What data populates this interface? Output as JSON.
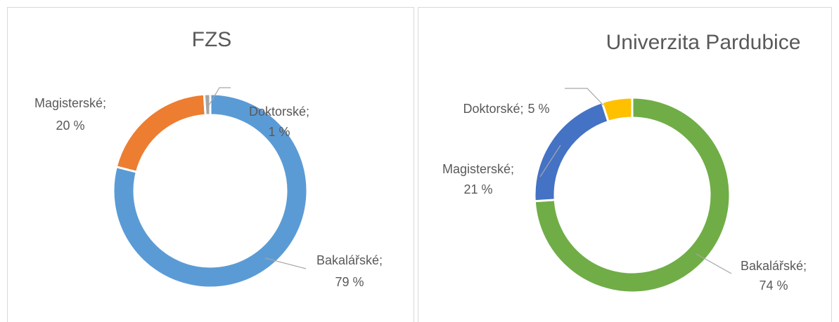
{
  "chart_data": [
    {
      "type": "donut",
      "title": "FZS",
      "categories": [
        "Bakalářské;",
        "Magisterské;",
        "Doktorské;"
      ],
      "values": [
        79,
        20,
        1
      ],
      "value_labels": [
        "79 %",
        "20 %",
        "1 %"
      ],
      "colors": [
        "#5b9bd5",
        "#ed7d31",
        "#a5a5a5"
      ]
    },
    {
      "type": "donut",
      "title": "Univerzita Pardubice",
      "categories": [
        "Bakalářské;",
        "Magisterské;",
        "Doktorské;"
      ],
      "values": [
        74,
        21,
        5
      ],
      "value_labels": [
        "74 %",
        "21 %",
        "5 %"
      ],
      "colors": [
        "#70ad47",
        "#4472c4",
        "#ffc000"
      ]
    }
  ]
}
